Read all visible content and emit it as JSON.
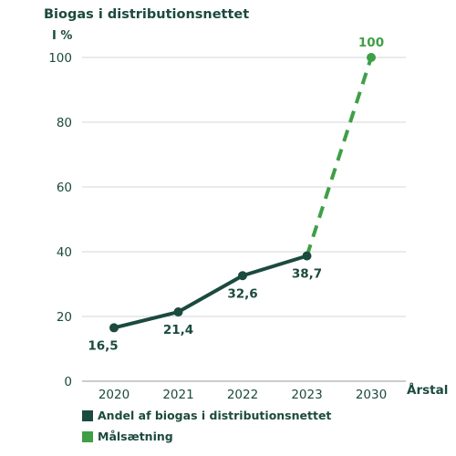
{
  "chart_data": {
    "type": "line",
    "title": "Biogas i distributionsnettet",
    "ylabel": "I %",
    "xlabel": "Årstal",
    "categories": [
      "2020",
      "2021",
      "2022",
      "2023",
      "2030"
    ],
    "ylim": [
      0,
      100
    ],
    "yticks": [
      0,
      20,
      40,
      60,
      80,
      100
    ],
    "grid": true,
    "legend_position": "bottom-left",
    "series": [
      {
        "name": "Andel af biogas i distributionsnettet",
        "color": "#1b4a3e",
        "style": "solid",
        "points": [
          {
            "x": "2020",
            "y": 16.5,
            "label": "16,5"
          },
          {
            "x": "2021",
            "y": 21.4,
            "label": "21,4"
          },
          {
            "x": "2022",
            "y": 32.6,
            "label": "32,6"
          },
          {
            "x": "2023",
            "y": 38.7,
            "label": "38,7"
          }
        ]
      },
      {
        "name": "Målsætning",
        "color": "#3e9f47",
        "style": "dashed",
        "points": [
          {
            "x": "2023",
            "y": 38.7,
            "label": ""
          },
          {
            "x": "2030",
            "y": 100,
            "label": "100"
          }
        ]
      }
    ]
  }
}
